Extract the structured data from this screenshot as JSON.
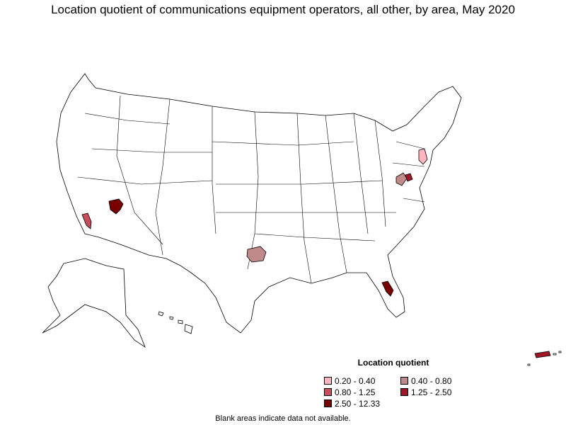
{
  "title": "Location quotient of communications equipment operators, all other, by area, May 2020",
  "legend": {
    "title": "Location quotient",
    "items": [
      {
        "label": "0.20 - 0.40",
        "color": "#ffb6c1"
      },
      {
        "label": "0.40 - 0.80",
        "color": "#c08a8a"
      },
      {
        "label": "0.80 - 1.25",
        "color": "#c84c5a"
      },
      {
        "label": "1.25 - 2.50",
        "color": "#a01828"
      },
      {
        "label": "2.50 - 12.33",
        "color": "#7a0000"
      }
    ]
  },
  "footnote": "Blank areas indicate data not available.",
  "map_data": {
    "highlighted_areas": [
      {
        "region": "Las Vegas area, NV",
        "class": "2.50 - 12.33"
      },
      {
        "region": "Southern California",
        "class": "0.80 - 1.25"
      },
      {
        "region": "Central Texas",
        "class": "0.40 - 0.80"
      },
      {
        "region": "Central Florida",
        "class": "2.50 - 12.33"
      },
      {
        "region": "Virginia / Maryland",
        "class": "0.40 - 0.80"
      },
      {
        "region": "Virginia / DC area",
        "class": "1.25 - 2.50"
      },
      {
        "region": "New Jersey / Pennsylvania",
        "class": "0.20 - 0.40"
      },
      {
        "region": "Puerto Rico",
        "class": "1.25 - 2.50"
      }
    ]
  }
}
